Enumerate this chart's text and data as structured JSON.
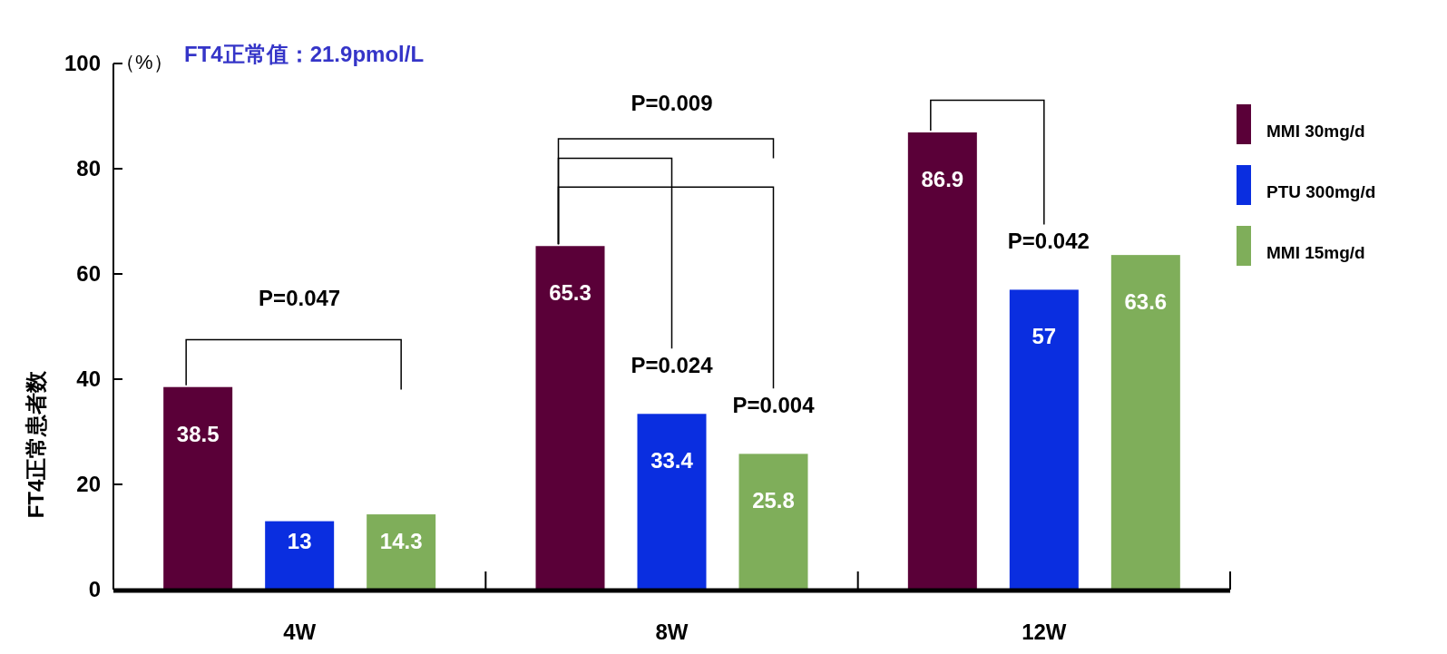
{
  "chart_data": {
    "type": "bar",
    "title": "FT4正常值：21.9pmol/L",
    "ylabel": "FT4正常患者数",
    "categories": [
      "4W",
      "8W",
      "12W"
    ],
    "series": [
      {
        "name": "MMI 30mg/d",
        "color": "#5a0038",
        "values": [
          38.5,
          65.3,
          86.9
        ]
      },
      {
        "name": "PTU 300mg/d",
        "color": "#0a2ee0",
        "values": [
          13,
          33.4,
          57
        ]
      },
      {
        "name": "MMI 15mg/d",
        "color": "#7fae5a",
        "values": [
          14.3,
          25.8,
          63.6
        ]
      }
    ],
    "ylim": [
      0,
      100
    ],
    "yticks": [
      0,
      20,
      40,
      60,
      80,
      100
    ],
    "grid": false,
    "legend": "right",
    "data_labels": true,
    "annotations": [
      "（%）",
      "P=0.047",
      "P=0.009",
      {
        "text": "P=0.024",
        "x": "8W",
        "y": 33.4
      },
      {
        "text": "P=0.004",
        "y": 25.8
      },
      {
        "text": "P=0.042",
        "x": "12W",
        "y": 57
      }
    ]
  }
}
